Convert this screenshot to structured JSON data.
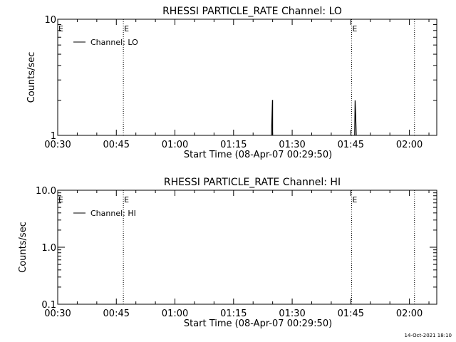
{
  "chart_data": [
    {
      "type": "line",
      "title": "RHESSI PARTICLE_RATE Channel: LO",
      "xlabel": "Start Time (08-Apr-07 00:29:50)",
      "ylabel": "Counts/sec",
      "x_tick_labels": [
        "00:30",
        "00:45",
        "01:00",
        "01:15",
        "01:30",
        "01:45",
        "02:00"
      ],
      "x_ticks_minutes": [
        30,
        45,
        60,
        75,
        90,
        105,
        120
      ],
      "xlim_minutes": [
        30,
        127
      ],
      "y_scale": "log",
      "ylim": [
        1,
        10
      ],
      "y_tick_labels": [
        "1",
        "10"
      ],
      "y_tick_values": [
        1,
        10
      ],
      "legend": {
        "placement": "top-left",
        "entries": [
          "Channel: LO"
        ]
      },
      "event_markers": [
        {
          "x_minutes": 46.8,
          "label": "E"
        },
        {
          "x_minutes": 105.2,
          "label": "E"
        },
        {
          "x_minutes": 121.3,
          "label": ""
        }
      ],
      "series": [
        {
          "name": "Channel: LO",
          "segments": [
            [
              [
                84.7,
                1.0
              ],
              [
                84.95,
                2.0
              ],
              [
                85.0,
                2.0
              ],
              [
                85.0,
                1.0
              ]
            ],
            [
              [
                106.0,
                1.0
              ],
              [
                106.1,
                2.0
              ],
              [
                106.25,
                1.5
              ],
              [
                106.4,
                1.0
              ]
            ]
          ]
        }
      ]
    },
    {
      "type": "line",
      "title": "RHESSI PARTICLE_RATE Channel: HI",
      "xlabel": "Start Time (08-Apr-07 00:29:50)",
      "ylabel": "Counts/sec",
      "x_tick_labels": [
        "00:30",
        "00:45",
        "01:00",
        "01:15",
        "01:30",
        "01:45",
        "02:00"
      ],
      "x_ticks_minutes": [
        30,
        45,
        60,
        75,
        90,
        105,
        120
      ],
      "xlim_minutes": [
        30,
        127
      ],
      "y_scale": "log",
      "ylim": [
        0.1,
        10
      ],
      "y_tick_labels": [
        "0.1",
        "1.0",
        "10.0"
      ],
      "y_tick_values": [
        0.1,
        1,
        10
      ],
      "legend": {
        "placement": "top-left",
        "entries": [
          "Channel: HI"
        ]
      },
      "event_markers": [
        {
          "x_minutes": 46.8,
          "label": "E"
        },
        {
          "x_minutes": 105.2,
          "label": "E"
        },
        {
          "x_minutes": 121.3,
          "label": ""
        }
      ],
      "series": [
        {
          "name": "Channel: HI",
          "segments": []
        }
      ]
    }
  ],
  "footer": {
    "timestamp": "14-Oct-2021 18:10"
  }
}
